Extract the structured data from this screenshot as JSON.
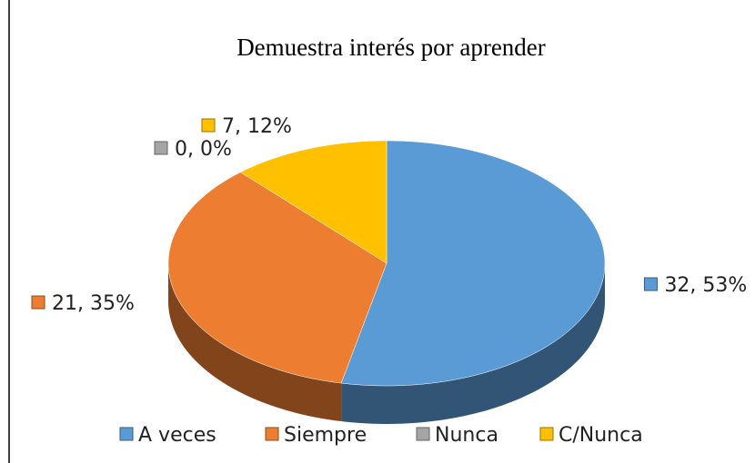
{
  "chart_data": {
    "type": "pie3d",
    "title": "Demuestra interés por aprender",
    "categories": [
      "A veces",
      "Siempre",
      "Nunca",
      "C/Nunca"
    ],
    "values": [
      32,
      21,
      0,
      7
    ],
    "value_labels": [
      "32, 53%",
      "21, 35%",
      "0, 0%",
      "7, 12%"
    ],
    "colors": [
      "#5b9bd5",
      "#ed7d31",
      "#a5a5a5",
      "#ffc000"
    ],
    "legend": "bottom"
  }
}
